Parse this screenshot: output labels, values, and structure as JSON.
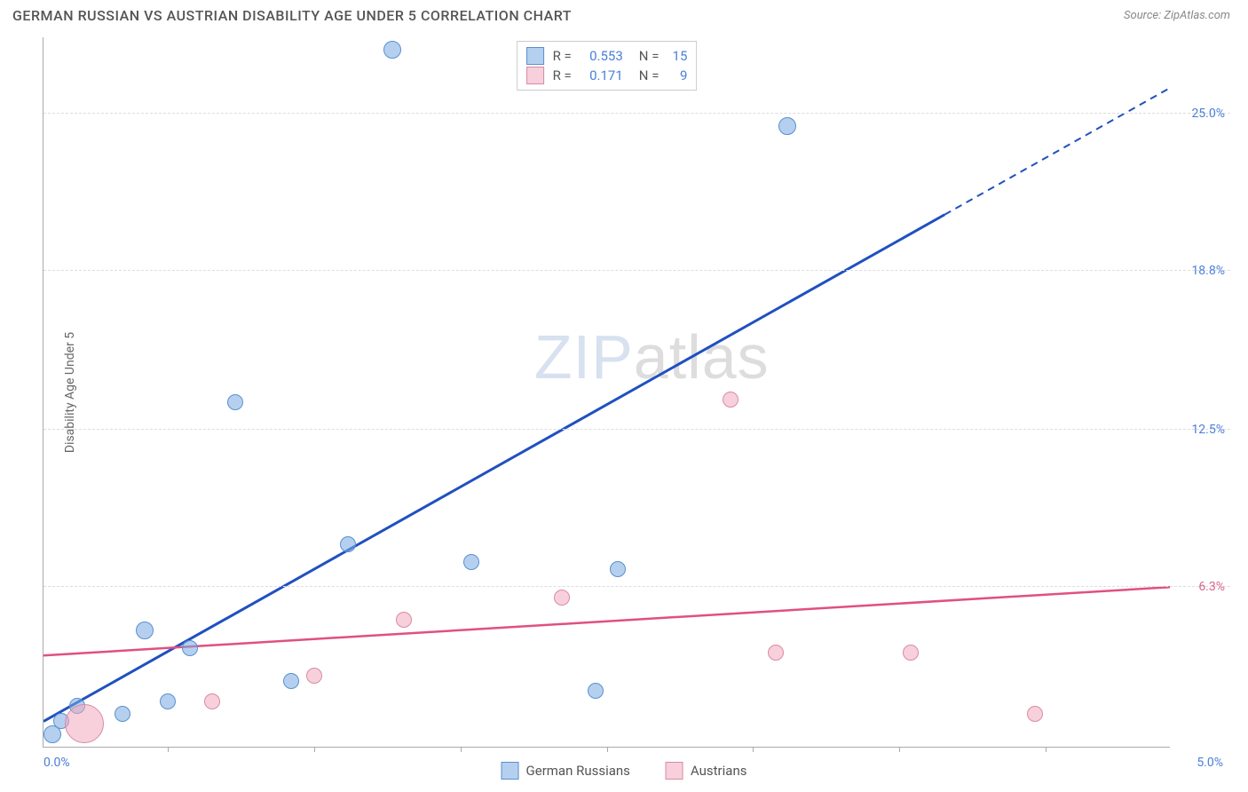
{
  "header": {
    "title": "GERMAN RUSSIAN VS AUSTRIAN DISABILITY AGE UNDER 5 CORRELATION CHART",
    "source": "Source: ZipAtlas.com"
  },
  "chart": {
    "type": "scatter",
    "y_label": "Disability Age Under 5",
    "xlim": [
      0,
      5.0
    ],
    "ylim": [
      0,
      28
    ],
    "x_ticks": {
      "left": "0.0%",
      "right": "5.0%"
    },
    "y_ticks": [
      {
        "value": 6.3,
        "label": "6.3%",
        "color": "#d9648a"
      },
      {
        "value": 12.5,
        "label": "12.5%",
        "color": "#4a7fd8"
      },
      {
        "value": 18.8,
        "label": "18.8%",
        "color": "#4a7fd8"
      },
      {
        "value": 25.0,
        "label": "25.0%",
        "color": "#4a7fd8"
      }
    ],
    "x_tick_marks": [
      0.55,
      1.2,
      1.85,
      2.5,
      3.15,
      3.8,
      4.45
    ],
    "colors": {
      "blue_fill": "rgba(120,170,225,0.55)",
      "blue_stroke": "#5a8fd0",
      "blue_line": "#2050c0",
      "pink_fill": "rgba(240,170,190,0.55)",
      "pink_stroke": "#d98aa5",
      "pink_line": "#e05080",
      "tick_blue": "#4a7fd8"
    },
    "series": [
      {
        "name": "German Russians",
        "color_key": "blue",
        "points": [
          {
            "x": 0.04,
            "y": 0.5,
            "r": 10
          },
          {
            "x": 0.15,
            "y": 1.6,
            "r": 9
          },
          {
            "x": 0.35,
            "y": 1.3,
            "r": 9
          },
          {
            "x": 0.55,
            "y": 1.8,
            "r": 9
          },
          {
            "x": 0.45,
            "y": 4.6,
            "r": 10
          },
          {
            "x": 0.65,
            "y": 3.9,
            "r": 9
          },
          {
            "x": 0.85,
            "y": 13.6,
            "r": 9
          },
          {
            "x": 1.1,
            "y": 2.6,
            "r": 9
          },
          {
            "x": 1.35,
            "y": 8.0,
            "r": 9
          },
          {
            "x": 1.55,
            "y": 27.5,
            "r": 10
          },
          {
            "x": 1.9,
            "y": 7.3,
            "r": 9
          },
          {
            "x": 2.45,
            "y": 2.2,
            "r": 9
          },
          {
            "x": 2.55,
            "y": 7.0,
            "r": 9
          },
          {
            "x": 3.3,
            "y": 24.5,
            "r": 10
          },
          {
            "x": 0.08,
            "y": 1.0,
            "r": 9
          }
        ],
        "trend": {
          "x1": 0,
          "y1": 1.0,
          "x2": 4.0,
          "y2": 21.0,
          "x3": 5.0,
          "y3": 26.0
        }
      },
      {
        "name": "Austrians",
        "color_key": "pink",
        "points": [
          {
            "x": 0.18,
            "y": 0.9,
            "r": 22
          },
          {
            "x": 0.75,
            "y": 1.8,
            "r": 9
          },
          {
            "x": 1.2,
            "y": 2.8,
            "r": 9
          },
          {
            "x": 1.6,
            "y": 5.0,
            "r": 9
          },
          {
            "x": 2.3,
            "y": 5.9,
            "r": 9
          },
          {
            "x": 3.05,
            "y": 13.7,
            "r": 9
          },
          {
            "x": 3.25,
            "y": 3.7,
            "r": 9
          },
          {
            "x": 3.85,
            "y": 3.7,
            "r": 9
          },
          {
            "x": 4.4,
            "y": 1.3,
            "r": 9
          }
        ],
        "trend": {
          "x1": 0,
          "y1": 3.6,
          "x2": 5.0,
          "y2": 6.3
        }
      }
    ],
    "legend_top": [
      {
        "color_key": "blue",
        "r_label": "R =",
        "r_value": "0.553",
        "n_label": "N =",
        "n_value": "15"
      },
      {
        "color_key": "pink",
        "r_label": "R =",
        "r_value": "0.171",
        "n_label": "N =",
        "n_value": "9"
      }
    ],
    "legend_bottom": [
      {
        "color_key": "blue",
        "label": "German Russians"
      },
      {
        "color_key": "pink",
        "label": "Austrians"
      }
    ]
  },
  "watermark": {
    "part1": "ZIP",
    "part2": "atlas"
  }
}
